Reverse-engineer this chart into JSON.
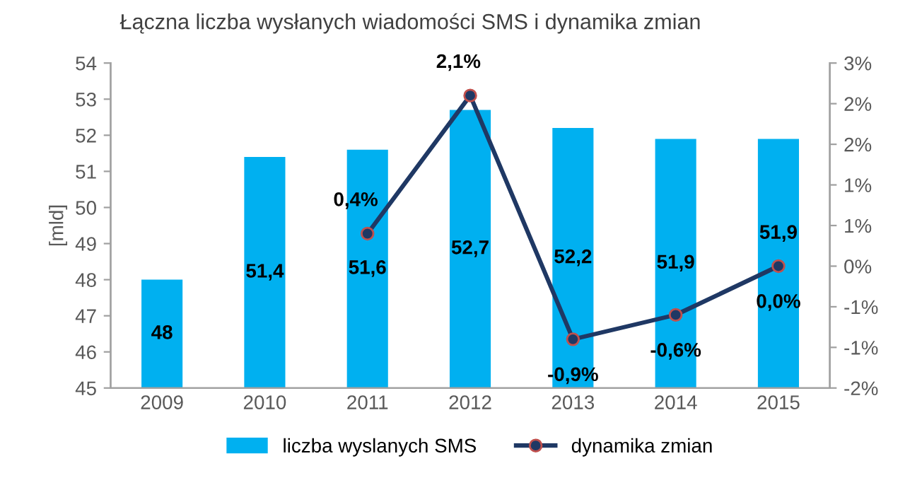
{
  "chart_data": {
    "type": "bar",
    "title": "Łączna liczba wysłanych wiadomości SMS i dynamika zmian",
    "ylabel": "[mld]",
    "categories": [
      "2009",
      "2010",
      "2011",
      "2012",
      "2013",
      "2014",
      "2015"
    ],
    "series": [
      {
        "name": "liczba wyslanych SMS",
        "color": "#00b0f0",
        "values": [
          48,
          51.4,
          51.6,
          52.7,
          52.2,
          51.9,
          51.9
        ],
        "value_labels": [
          "48",
          "51,4",
          "51,6",
          "52,7",
          "52,2",
          "51,9",
          "51,9"
        ]
      },
      {
        "name": "dynamika zmian",
        "type": "line",
        "axis": "y2",
        "color": "#1f3864",
        "marker": "circle",
        "values": [
          null,
          null,
          0.4,
          2.1,
          -0.9,
          -0.6,
          0.0
        ],
        "value_labels": [
          null,
          null,
          "0,4%",
          "2,1%",
          "-0,9%",
          "-0,6%",
          "0,0%"
        ]
      }
    ],
    "ylim": [
      45,
      54
    ],
    "yticks": [
      45,
      46,
      47,
      48,
      49,
      50,
      51,
      52,
      53,
      54
    ],
    "y2lim": [
      -1.5,
      2.5
    ],
    "y2ticks": [
      {
        "value": -1.5,
        "label": "-2%"
      },
      {
        "value": -1.0,
        "label": "-1%"
      },
      {
        "value": -0.5,
        "label": "-1%"
      },
      {
        "value": 0,
        "label": "0%"
      },
      {
        "value": 0.5,
        "label": "1%"
      },
      {
        "value": 1.0,
        "label": "1%"
      },
      {
        "value": 1.5,
        "label": "2%"
      },
      {
        "value": 2.0,
        "label": "2%"
      },
      {
        "value": 2.5,
        "label": "3%"
      }
    ],
    "grid": false,
    "legend": "bottom"
  }
}
